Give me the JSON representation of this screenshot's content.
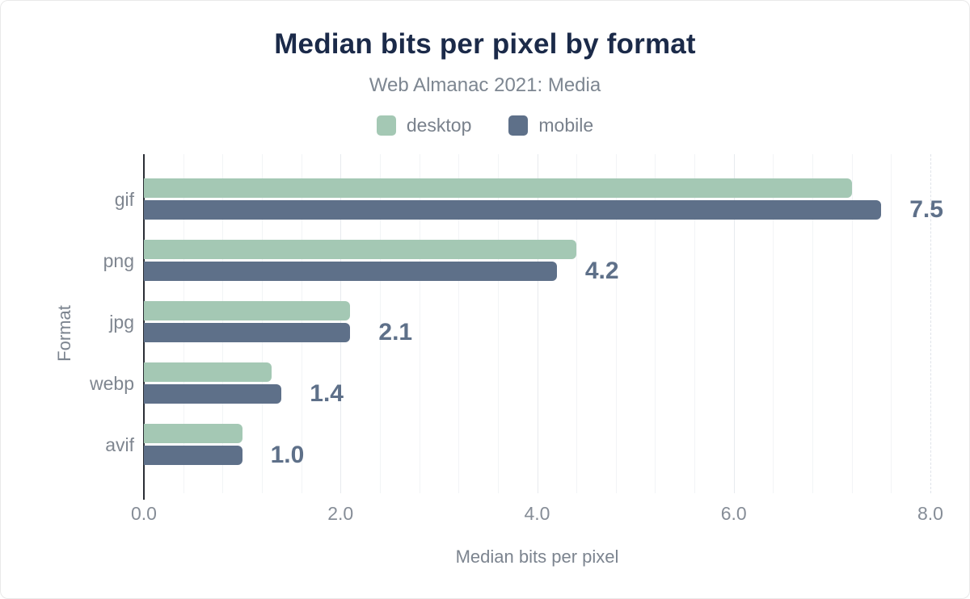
{
  "header": {
    "title": "Median bits per pixel by format",
    "subtitle": "Web Almanac 2021: Media"
  },
  "legend": [
    {
      "label": "desktop",
      "color": "#a4c8b4"
    },
    {
      "label": "mobile",
      "color": "#5e7089"
    }
  ],
  "colors": {
    "title": "#1b2a49",
    "secondary_text": "#7d8691",
    "desktop_bar": "#a4c8b4",
    "mobile_bar": "#5e7089",
    "value_label": "#5e7089",
    "axis_line": "#2a2e35",
    "grid_minor": "#f2f4f6",
    "grid_major": "#e7eaee"
  },
  "chart_data": {
    "type": "bar",
    "orientation": "horizontal",
    "title": "Median bits per pixel by format",
    "subtitle": "Web Almanac 2021: Media",
    "categories": [
      "gif",
      "png",
      "jpg",
      "webp",
      "avif"
    ],
    "series": [
      {
        "name": "desktop",
        "color": "#a4c8b4",
        "values": [
          7.2,
          4.4,
          2.1,
          1.3,
          1.0
        ]
      },
      {
        "name": "mobile",
        "color": "#5e7089",
        "values": [
          7.5,
          4.2,
          2.1,
          1.4,
          1.0
        ]
      }
    ],
    "value_labels": [
      "7.5",
      "4.2",
      "2.1",
      "1.4",
      "1.0"
    ],
    "value_labels_series": "mobile",
    "xlabel": "Median bits per pixel",
    "ylabel": "Format",
    "xlim": [
      0,
      8
    ],
    "xticks": [
      0,
      2,
      4,
      6,
      8
    ],
    "xtick_labels": [
      "0.0",
      "2.0",
      "4.0",
      "6.0",
      "8.0"
    ],
    "minor_grid_step": 0.4,
    "major_grid_step": 2,
    "grid": true,
    "legend_position": "top"
  }
}
